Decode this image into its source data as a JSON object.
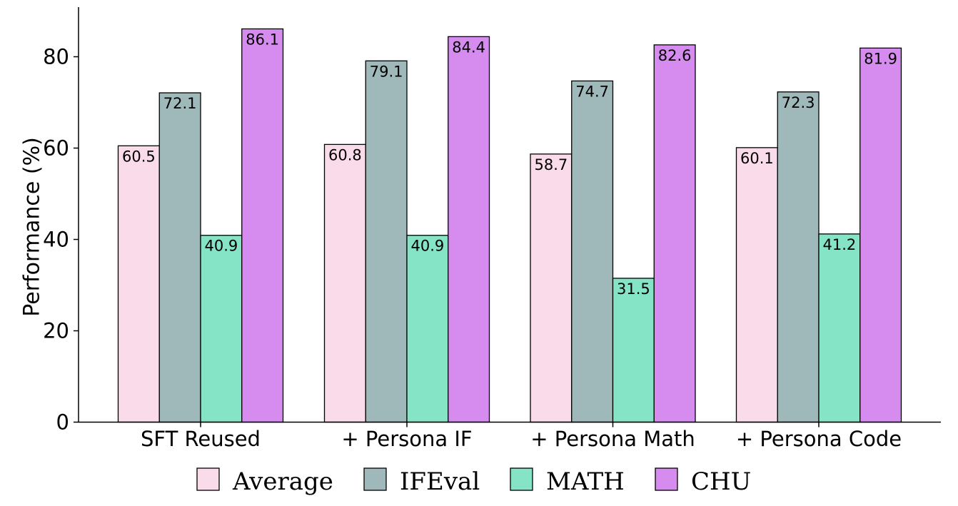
{
  "chart_data": {
    "type": "bar",
    "title": "",
    "xlabel": "",
    "ylabel": "Performance (%)",
    "ylim": [
      0,
      90
    ],
    "yticks": [
      0,
      20,
      40,
      60,
      80
    ],
    "grid": false,
    "legend_position": "bottom",
    "categories": [
      "SFT Reused",
      "+ Persona IF",
      "+ Persona Math",
      "+ Persona Code"
    ],
    "series": [
      {
        "name": "Average",
        "color": "#fadbe9",
        "values": [
          60.5,
          60.8,
          58.7,
          60.1
        ]
      },
      {
        "name": "IFEval",
        "color": "#9fb8b9",
        "values": [
          72.1,
          79.1,
          74.7,
          72.3
        ]
      },
      {
        "name": "MATH",
        "color": "#85e3c6",
        "values": [
          40.9,
          40.9,
          31.5,
          41.2
        ]
      },
      {
        "name": "CHU",
        "color": "#d68bef",
        "values": [
          86.1,
          84.4,
          82.6,
          81.9
        ]
      }
    ]
  }
}
